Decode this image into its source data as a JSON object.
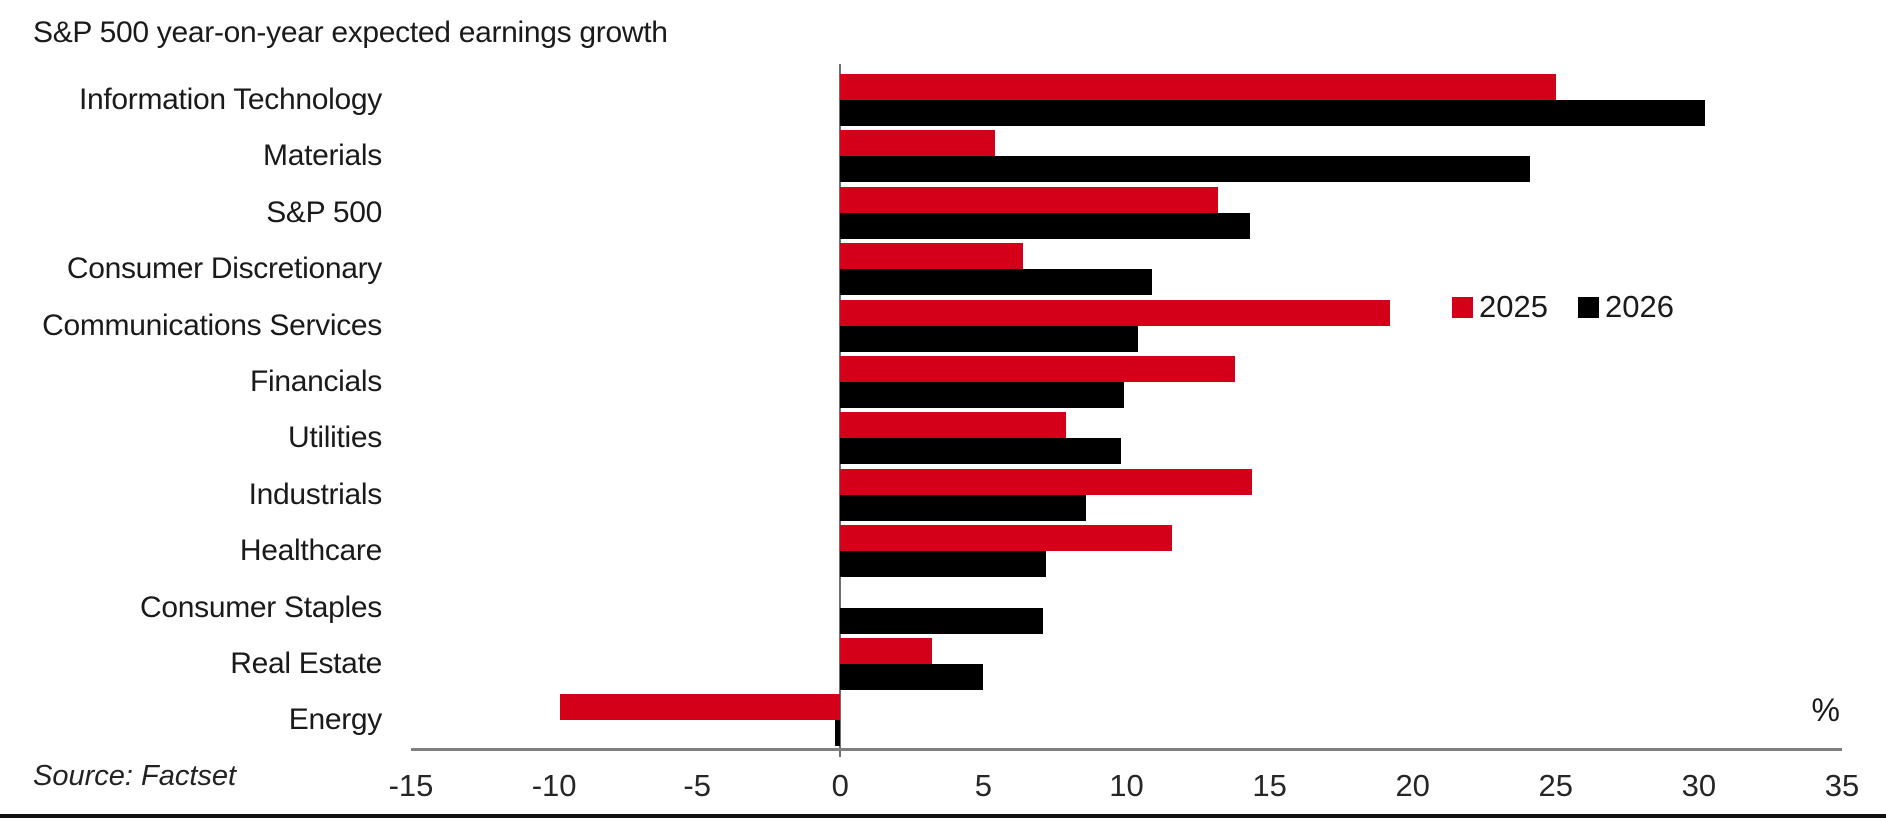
{
  "chart_data": {
    "type": "bar",
    "orientation": "horizontal",
    "title": "S&P 500 year-on-year expected earnings growth",
    "unit": "%",
    "source": "Source: Factset",
    "categories": [
      "Information Technology",
      "Materials",
      "S&P 500",
      "Consumer Discretionary",
      "Communications Services",
      "Financials",
      "Utilities",
      "Industrials",
      "Healthcare",
      "Consumer Staples",
      "Real Estate",
      "Energy"
    ],
    "series": [
      {
        "name": "2025",
        "color": "#d40019",
        "values": [
          25.0,
          5.4,
          13.2,
          6.4,
          19.2,
          13.8,
          7.9,
          14.4,
          11.6,
          0.0,
          3.2,
          -9.8
        ]
      },
      {
        "name": "2026",
        "color": "#000000",
        "values": [
          30.2,
          24.1,
          14.3,
          10.9,
          10.4,
          9.9,
          9.8,
          8.6,
          7.2,
          7.1,
          5.0,
          -0.2
        ]
      }
    ],
    "xlim": [
      -15,
      35
    ],
    "xticks": [
      -15,
      -10,
      -5,
      0,
      5,
      10,
      15,
      20,
      25,
      30,
      35
    ],
    "legend_position": "middle-right",
    "grid": false,
    "axis_color": "#7f7f7f",
    "zero_line_color": "#6e6e6e"
  }
}
